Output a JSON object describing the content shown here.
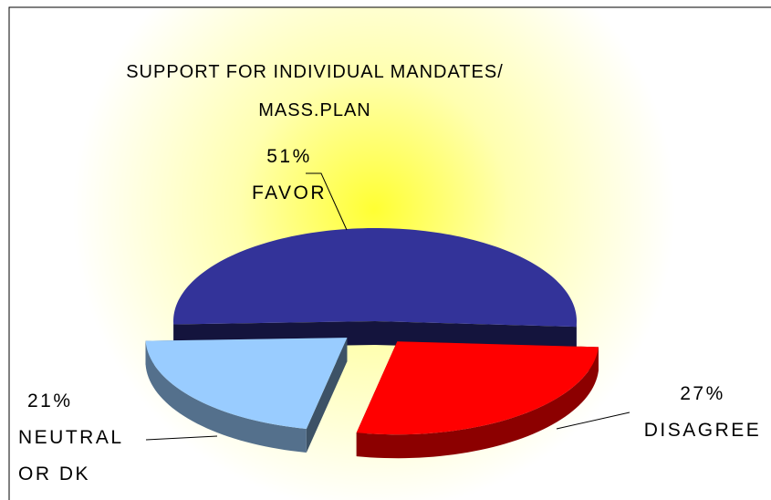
{
  "chart_data": {
    "type": "pie",
    "title": "SUPPORT FOR INDIVIDUAL MANDATES/ MASS.PLAN",
    "categories": [
      "FAVOR",
      "DISAGREE",
      "NEUTRAL OR DK"
    ],
    "values": [
      51,
      27,
      21
    ],
    "value_labels": [
      "51%",
      "27%",
      "21%"
    ],
    "colors": [
      "#333399",
      "#ff0000",
      "#99ccff"
    ]
  }
}
